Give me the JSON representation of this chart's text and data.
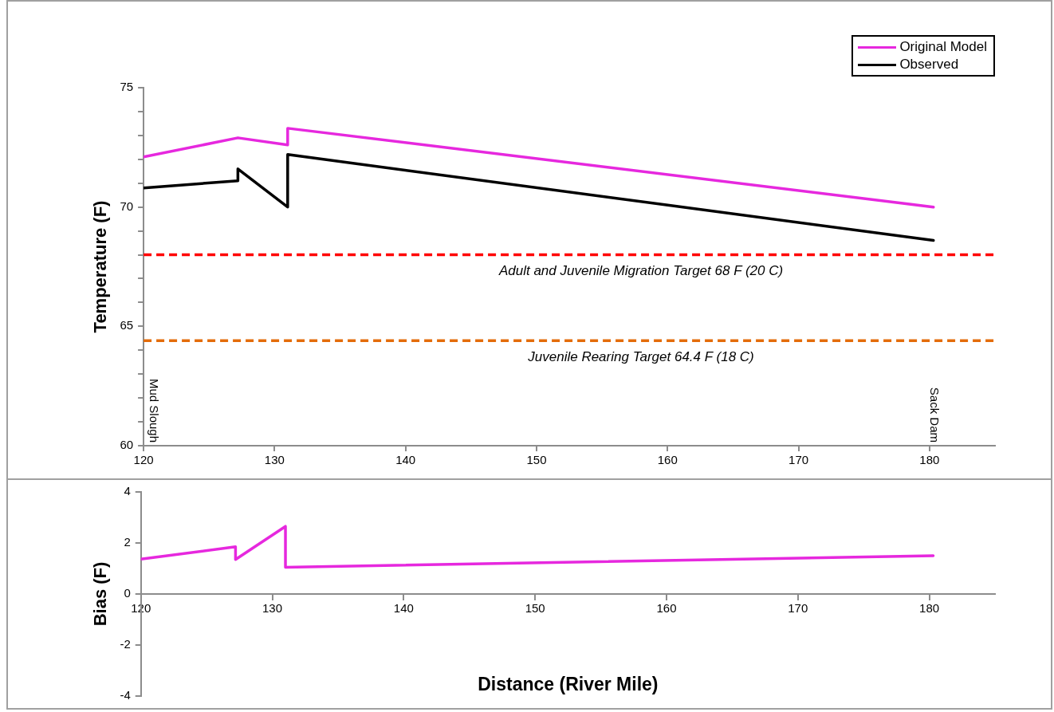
{
  "chart_data": [
    {
      "type": "line",
      "ylabel": "Temperature (F)",
      "xlim": [
        120,
        185
      ],
      "xticks": [
        120,
        130,
        140,
        150,
        160,
        170,
        180
      ],
      "ylim": [
        60,
        75
      ],
      "yticks": [
        60,
        {
          "value": 61,
          "label": null
        },
        {
          "value": 62,
          "label": null
        },
        {
          "value": 63,
          "label": null
        },
        {
          "value": 64,
          "label": null
        },
        65,
        {
          "value": 66,
          "label": null
        },
        {
          "value": 67,
          "label": null
        },
        {
          "value": 68,
          "label": null
        },
        {
          "value": 69,
          "label": null
        },
        70,
        {
          "value": 71,
          "label": null
        },
        {
          "value": 72,
          "label": null
        },
        {
          "value": 73,
          "label": null
        },
        {
          "value": 74,
          "label": null
        },
        75
      ],
      "grid": false,
      "legend": "top right",
      "marker": "none",
      "line_style": "solid",
      "series": [
        {
          "name": "Original Model",
          "color": "#e628de",
          "x": [
            120,
            127.2,
            131,
            131,
            180.3
          ],
          "values": [
            72.1,
            72.9,
            72.6,
            73.3,
            70.0
          ]
        },
        {
          "name": "Observed",
          "color": "#000000",
          "x": [
            120,
            127.2,
            127.2,
            131,
            131,
            180.3
          ],
          "values": [
            70.8,
            71.1,
            71.6,
            70.0,
            72.2,
            68.6
          ]
        }
      ],
      "ref_lines": [
        {
          "axis": "y",
          "value": 68,
          "label": "Adult and Juvenile Migration Target 68 F (20 C)",
          "color": "#ff0000",
          "line_style": "dashed"
        },
        {
          "axis": "y",
          "value": 64.4,
          "label": "Juvenile Rearing Target 64.4 F (18 C)",
          "color": "#e46c0a",
          "line_style": "dashed"
        }
      ],
      "annotations": [
        "Mud Slough",
        "Sack Dam"
      ]
    },
    {
      "type": "line",
      "ylabel": "Bias (F)",
      "xlabel": "Distance (River Mile)",
      "xlim": [
        120,
        185
      ],
      "xticks": [
        120,
        130,
        140,
        150,
        160,
        170,
        180
      ],
      "ylim": [
        -4,
        4
      ],
      "yticks": [
        -4,
        -2,
        0,
        2,
        4
      ],
      "grid": false,
      "legend": false,
      "marker": "none",
      "line_style": "solid",
      "series": [
        {
          "color": "#e628de",
          "x": [
            120,
            127.2,
            127.2,
            131,
            131,
            180.3
          ],
          "values": [
            1.37,
            1.85,
            1.35,
            2.65,
            1.05,
            1.5
          ]
        }
      ]
    }
  ]
}
